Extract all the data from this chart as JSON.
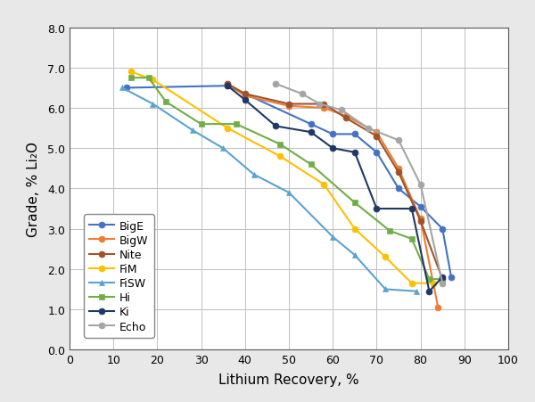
{
  "series": {
    "BigE": {
      "color": "#4472C4",
      "marker": "o",
      "x": [
        13,
        36,
        55,
        60,
        65,
        70,
        75,
        80,
        85,
        87
      ],
      "y": [
        6.5,
        6.55,
        5.6,
        5.35,
        5.35,
        4.9,
        4.0,
        3.55,
        3.0,
        1.8
      ]
    },
    "BigW": {
      "color": "#ED7D31",
      "marker": "o",
      "x": [
        36,
        40,
        50,
        58,
        63,
        70,
        75,
        80,
        84
      ],
      "y": [
        6.6,
        6.3,
        6.05,
        6.0,
        5.8,
        5.4,
        4.5,
        3.25,
        1.05
      ]
    },
    "Nite": {
      "color": "#A0522D",
      "marker": "o",
      "x": [
        36,
        40,
        50,
        58,
        63,
        70,
        75,
        80,
        85
      ],
      "y": [
        6.6,
        6.35,
        6.1,
        6.1,
        5.75,
        5.3,
        4.4,
        3.2,
        1.75
      ]
    },
    "FiM": {
      "color": "#FFC000",
      "marker": "o",
      "x": [
        14,
        19,
        36,
        48,
        58,
        65,
        72,
        78,
        83
      ],
      "y": [
        6.9,
        6.7,
        5.5,
        4.8,
        4.1,
        3.0,
        2.3,
        1.65,
        1.65
      ]
    },
    "FiSW": {
      "color": "#5BA3D0",
      "marker": "^",
      "x": [
        12,
        19,
        28,
        35,
        42,
        50,
        60,
        65,
        72,
        79
      ],
      "y": [
        6.5,
        6.1,
        5.45,
        5.0,
        4.35,
        3.9,
        2.8,
        2.35,
        1.5,
        1.45
      ]
    },
    "Hi": {
      "color": "#70AD47",
      "marker": "s",
      "x": [
        14,
        18,
        22,
        30,
        38,
        48,
        55,
        65,
        73,
        78,
        82,
        85
      ],
      "y": [
        6.75,
        6.75,
        6.15,
        5.6,
        5.6,
        5.1,
        4.6,
        3.65,
        2.95,
        2.75,
        1.75,
        1.75
      ]
    },
    "Ki": {
      "color": "#1F3864",
      "marker": "o",
      "x": [
        36,
        40,
        47,
        55,
        60,
        65,
        70,
        78,
        82,
        85
      ],
      "y": [
        6.55,
        6.2,
        5.55,
        5.4,
        5.0,
        4.9,
        3.5,
        3.5,
        1.45,
        1.8
      ]
    },
    "Echo": {
      "color": "#A5A5A5",
      "marker": "o",
      "x": [
        47,
        53,
        57,
        62,
        68,
        75,
        80,
        85
      ],
      "y": [
        6.6,
        6.35,
        6.1,
        5.95,
        5.5,
        5.2,
        4.1,
        1.65
      ]
    }
  },
  "xlabel": "Lithium Recovery, %",
  "ylabel": "Grade, % Li₂O",
  "xlim": [
    0,
    100
  ],
  "ylim": [
    0.0,
    8.0
  ],
  "xticks": [
    0,
    10,
    20,
    30,
    40,
    50,
    60,
    70,
    80,
    90,
    100
  ],
  "yticks": [
    0.0,
    1.0,
    2.0,
    3.0,
    4.0,
    5.0,
    6.0,
    7.0,
    8.0
  ],
  "legend_order": [
    "BigE",
    "BigW",
    "Nite",
    "FiM",
    "FiSW",
    "Hi",
    "Ki",
    "Echo"
  ],
  "background_color": "#FFFFFF",
  "outer_bg": "#E8E8E8",
  "grid_color": "#BEBEBE"
}
